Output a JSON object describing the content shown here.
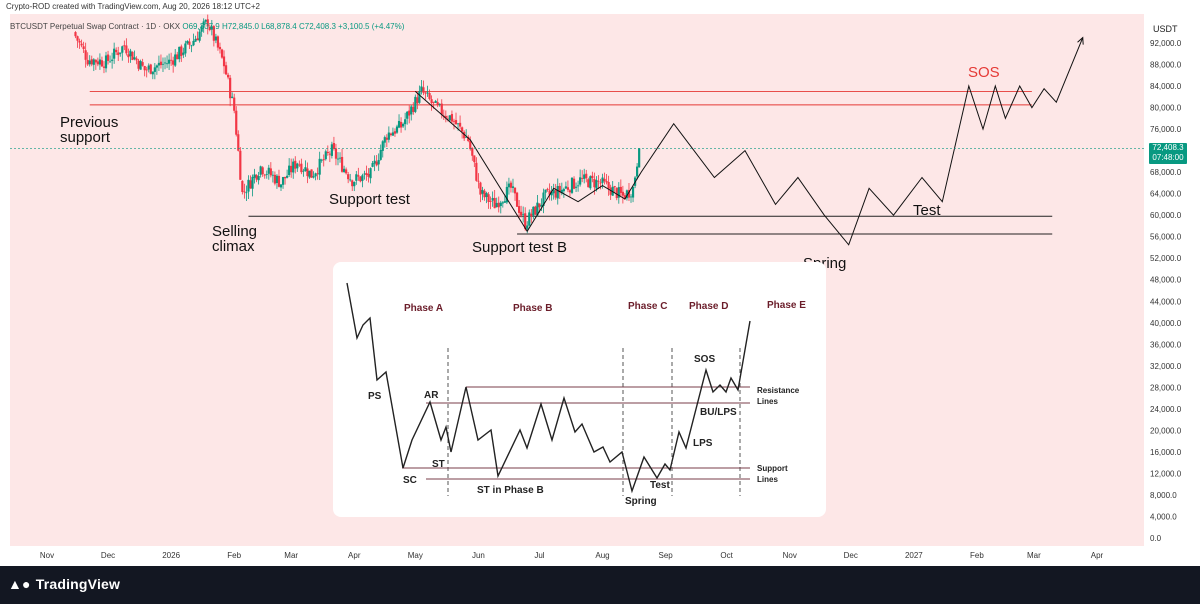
{
  "header": {
    "attribution": "Crypto-ROD created with TradingView.com, Aug 20, 2026 18:12 UTC+2"
  },
  "symbol_line": {
    "symbol": "BTCUSDT Perpetual Swap Contract · 1D · OKX",
    "open": "O69,307.9",
    "high": "H72,845.0",
    "low": "L68,878.4",
    "close": "C72,408.3",
    "change": "+3,100.5 (+4.47%)"
  },
  "price_axis": {
    "currency": "USDT",
    "last_price": "72,408.3",
    "countdown": "07:48:00"
  },
  "footer": {
    "brand": "TradingView"
  },
  "colors": {
    "bullish": "#089981",
    "bearish": "#f23645",
    "background_shade": "#fde7e7",
    "resistance_line": "#e53935",
    "sos_label": "#e53935"
  },
  "chart_data": {
    "type": "candlestick",
    "y_axis": {
      "ticks": [
        "92,000.0",
        "88,000.0",
        "84,000.0",
        "80,000.0",
        "76,000.0",
        "72,000.0",
        "68,000.0",
        "64,000.0",
        "60,000.0",
        "56,000.0",
        "52,000.0",
        "48,000.0",
        "44,000.0",
        "40,000.0",
        "36,000.0",
        "32,000.0",
        "28,000.0",
        "24,000.0",
        "20,000.0",
        "16,000.0",
        "12,000.0",
        "8,000.0",
        "4,000.0",
        "0.0"
      ],
      "tick_values": [
        92000,
        88000,
        84000,
        80000,
        76000,
        72000,
        68000,
        64000,
        60000,
        56000,
        52000,
        48000,
        44000,
        40000,
        36000,
        32000,
        28000,
        24000,
        20000,
        16000,
        12000,
        8000,
        4000,
        0
      ],
      "ylim": [
        -1000,
        97000
      ]
    },
    "x_axis": {
      "ticks": [
        "Nov",
        "Dec",
        "2026",
        "Feb",
        "Mar",
        "Apr",
        "May",
        "Jun",
        "Jul",
        "Aug",
        "Sep",
        "Oct",
        "Nov",
        "Dec",
        "2027",
        "Feb",
        "Mar",
        "Apr"
      ],
      "tick_dates": [
        "2025-11-01",
        "2025-12-01",
        "2026-01-01",
        "2026-02-01",
        "2026-03-01",
        "2026-04-01",
        "2026-05-01",
        "2026-06-01",
        "2026-07-01",
        "2026-08-01",
        "2026-09-01",
        "2026-10-01",
        "2026-11-01",
        "2026-12-01",
        "2027-01-01",
        "2027-02-01",
        "2027-03-01",
        "2027-04-01"
      ]
    },
    "price_points": [
      [
        "2025-11-15",
        94000
      ],
      [
        "2025-11-22",
        89000
      ],
      [
        "2025-12-01",
        88500
      ],
      [
        "2025-12-10",
        91500
      ],
      [
        "2025-12-20",
        87000
      ],
      [
        "2026-01-01",
        88500
      ],
      [
        "2026-01-12",
        92000
      ],
      [
        "2026-01-20",
        96000
      ],
      [
        "2026-01-28",
        88000
      ],
      [
        "2026-02-02",
        79500
      ],
      [
        "2026-02-06",
        64000
      ],
      [
        "2026-02-15",
        69000
      ],
      [
        "2026-02-25",
        66000
      ],
      [
        "2026-03-05",
        70000
      ],
      [
        "2026-03-12",
        67500
      ],
      [
        "2026-03-22",
        72000
      ],
      [
        "2026-04-01",
        66500
      ],
      [
        "2026-04-10",
        67500
      ],
      [
        "2026-04-18",
        75000
      ],
      [
        "2026-04-25",
        76500
      ],
      [
        "2026-05-05",
        83000
      ],
      [
        "2026-05-12",
        80000
      ],
      [
        "2026-05-20",
        78000
      ],
      [
        "2026-05-28",
        74000
      ],
      [
        "2026-06-03",
        64000
      ],
      [
        "2026-06-10",
        62000
      ],
      [
        "2026-06-18",
        65000
      ],
      [
        "2026-06-25",
        58500
      ],
      [
        "2026-07-05",
        63500
      ],
      [
        "2026-07-12",
        64500
      ],
      [
        "2026-07-22",
        66500
      ],
      [
        "2026-08-01",
        66000
      ],
      [
        "2026-08-12",
        63500
      ],
      [
        "2026-08-17",
        65000
      ],
      [
        "2026-08-20",
        72408
      ]
    ],
    "levels": [
      {
        "name": "Previous support (upper)",
        "value": 83000,
        "start": "2025-11-22",
        "end": "2027-02-28"
      },
      {
        "name": "Previous support (lower)",
        "value": 80500,
        "start": "2025-11-22",
        "end": "2027-02-28"
      },
      {
        "name": "Support",
        "value": 59800,
        "start": "2026-02-08",
        "end": "2027-03-10"
      },
      {
        "name": "Support test B",
        "value": 56500,
        "start": "2026-06-20",
        "end": "2027-03-10"
      }
    ],
    "projection_path": [
      [
        "2026-05-01",
        83000
      ],
      [
        "2026-05-28",
        74000
      ],
      [
        "2026-06-25",
        57000
      ],
      [
        "2026-07-08",
        65000
      ],
      [
        "2026-07-20",
        62500
      ],
      [
        "2026-08-01",
        65500
      ],
      [
        "2026-08-12",
        63000
      ],
      [
        "2026-08-20",
        68000
      ],
      [
        "2026-09-05",
        77000
      ],
      [
        "2026-09-25",
        67000
      ],
      [
        "2026-10-10",
        72000
      ],
      [
        "2026-10-25",
        62000
      ],
      [
        "2026-11-05",
        67000
      ],
      [
        "2026-11-18",
        60000
      ],
      [
        "2026-11-30",
        54500
      ],
      [
        "2026-12-10",
        65000
      ],
      [
        "2026-12-22",
        60000
      ],
      [
        "2027-01-05",
        67000
      ],
      [
        "2027-01-15",
        62500
      ],
      [
        "2027-01-28",
        84000
      ],
      [
        "2027-02-04",
        76000
      ],
      [
        "2027-02-10",
        84000
      ],
      [
        "2027-02-15",
        78000
      ],
      [
        "2027-02-22",
        84000
      ],
      [
        "2027-02-28",
        80000
      ],
      [
        "2027-03-06",
        83500
      ],
      [
        "2027-03-12",
        81000
      ],
      [
        "2027-03-25",
        93000
      ]
    ],
    "annotations": [
      "Previous support",
      "Selling climax",
      "Support test",
      "Support test B",
      "Spring",
      "Test",
      "SOS"
    ],
    "inset": {
      "phases": [
        "Phase A",
        "Phase B",
        "Phase C",
        "Phase D",
        "Phase E"
      ],
      "labels": [
        "PS",
        "AR",
        "SC",
        "ST",
        "ST in Phase B",
        "Spring",
        "Test",
        "LPS",
        "BU/LPS",
        "SOS"
      ],
      "line_labels": [
        "Resistance Lines",
        "Support Lines"
      ]
    }
  }
}
